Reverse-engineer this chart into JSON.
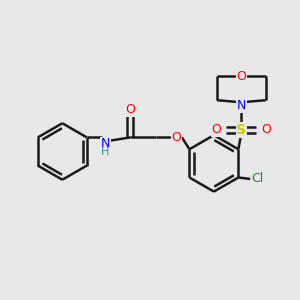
{
  "bg_color": "#e8e8e8",
  "bond_color": "#1a1a1a",
  "bond_width": 1.8,
  "figsize": [
    3.0,
    3.0
  ],
  "dpi": 100,
  "xlim": [
    0,
    10
  ],
  "ylim": [
    0,
    10
  ]
}
